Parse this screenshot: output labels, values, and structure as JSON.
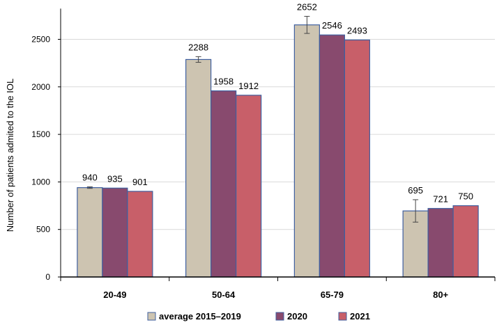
{
  "chart_data": {
    "type": "bar",
    "title": "",
    "xlabel": "",
    "ylabel": "Number of patients admited to the IOL",
    "ylim": [
      0,
      2750
    ],
    "yticks": [
      0,
      500,
      1000,
      1500,
      2000,
      2500
    ],
    "grid": true,
    "legend_position": "bottom",
    "categories": [
      "20-49",
      "50-64",
      "65-79",
      "80+"
    ],
    "series": [
      {
        "name": "average 2015–2019",
        "color": "#cdc4b1",
        "values": [
          940,
          2288,
          2652,
          695
        ],
        "error": [
          8,
          30,
          90,
          118
        ],
        "labels": [
          "940",
          "2288",
          "2652",
          "695"
        ]
      },
      {
        "name": "2020",
        "color": "#884a6e",
        "values": [
          935,
          1958,
          2546,
          721
        ],
        "labels": [
          "935",
          "1958",
          "2546",
          "721"
        ]
      },
      {
        "name": "2021",
        "color": "#c85f69",
        "values": [
          901,
          1912,
          2493,
          750
        ],
        "labels": [
          "901",
          "1912",
          "2493",
          "750"
        ]
      }
    ]
  }
}
